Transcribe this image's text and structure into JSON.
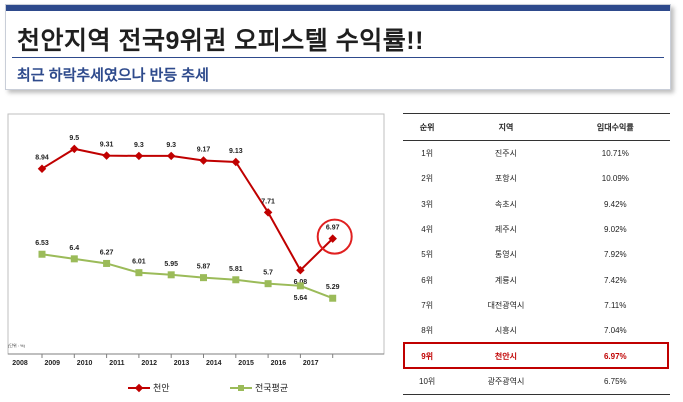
{
  "header": {
    "title": "천안지역 전국9위권 오피스텔 수익률!!",
    "subtitle": "최근 하락추세였으나 반등 추세"
  },
  "chart_data": {
    "type": "line",
    "x": [
      "2008",
      "2009",
      "2010",
      "2011",
      "2012",
      "2013",
      "2014",
      "2015",
      "2016",
      "2017"
    ],
    "series": [
      {
        "name": "천안",
        "color": "#c00000",
        "values": [
          8.94,
          9.5,
          9.31,
          9.3,
          9.3,
          9.17,
          9.13,
          7.71,
          6.08,
          6.97
        ],
        "labels": [
          "8.94",
          "9.5",
          "9.31",
          "9.3",
          "9.3",
          "9.17",
          "9.13",
          "7.71",
          "6.08",
          "6.97"
        ]
      },
      {
        "name": "전국평균",
        "color": "#9bbb59",
        "values": [
          6.53,
          6.4,
          6.27,
          6.01,
          5.95,
          5.87,
          5.81,
          5.7,
          5.64,
          5.29
        ],
        "labels": [
          "6.53",
          "6.4",
          "6.27",
          "6.01",
          "5.95",
          "5.87",
          "5.81",
          "5.7",
          "5.64",
          "5.29"
        ]
      }
    ],
    "unit_note": "(단위 : %)",
    "highlight_last_point": true,
    "legend_position": "bottom",
    "grid": false
  },
  "table": {
    "headers": [
      "순위",
      "지역",
      "임대수익률"
    ],
    "rows": [
      [
        "1위",
        "진주시",
        "10.71%"
      ],
      [
        "2위",
        "포항시",
        "10.09%"
      ],
      [
        "3위",
        "속초시",
        "9.42%"
      ],
      [
        "4위",
        "제주시",
        "9.02%"
      ],
      [
        "5위",
        "통영시",
        "7.92%"
      ],
      [
        "6위",
        "계룡시",
        "7.42%"
      ],
      [
        "7위",
        "대전광역시",
        "7.11%"
      ],
      [
        "8위",
        "시흥시",
        "7.04%"
      ],
      [
        "9위",
        "천안시",
        "6.97%"
      ],
      [
        "10위",
        "광주광역시",
        "6.75%"
      ]
    ],
    "highlight_row": 8,
    "highlight_color": "#c00000"
  }
}
